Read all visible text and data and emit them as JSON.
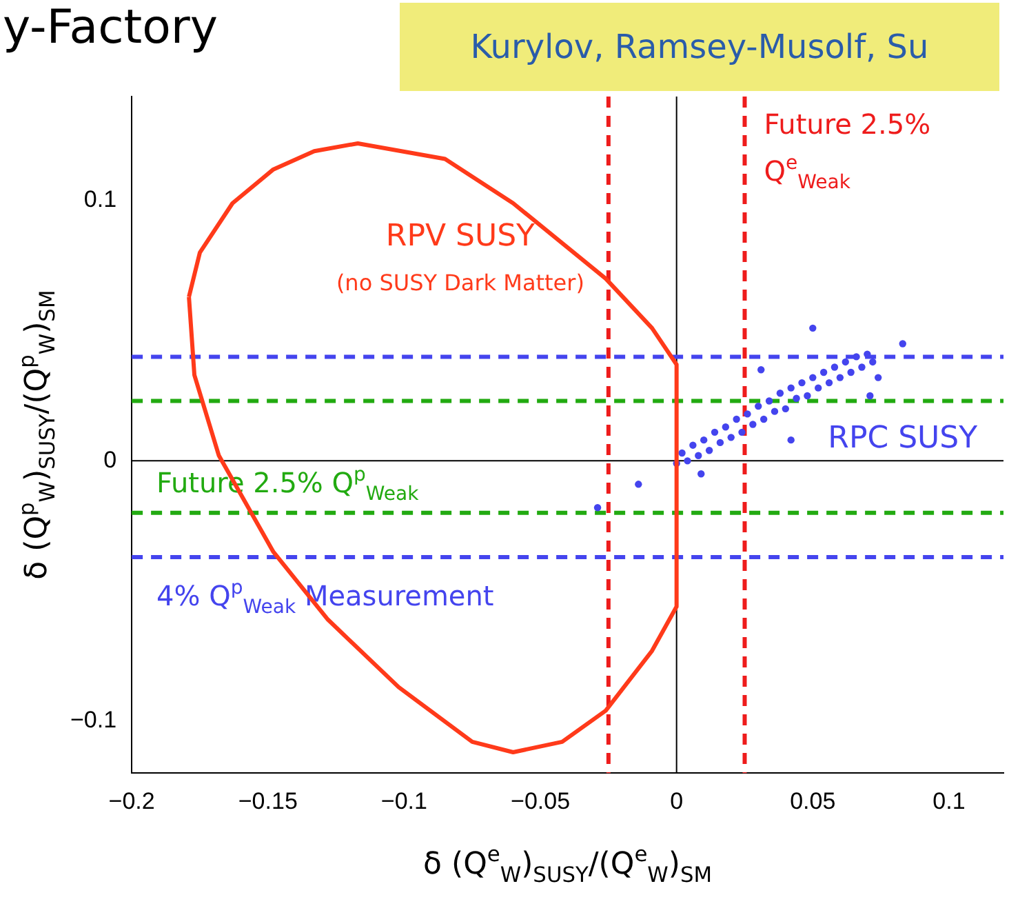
{
  "chart_data": {
    "type": "scatter",
    "xlabel": "δ (Q$^{e}$$_{W}$)$_{SUSY}$/(Q$^{e}$$_{W}$)$_{SM}$",
    "ylabel": "δ (Q$^{p}$$_{W}$)$_{SUSY}$/(Q$^{p}$$_{W}$)$_{SM}$",
    "annotations": [
      "y-Factory",
      "Kurylov, Ramsey-Musolf, Su"
    ],
    "xlim": [
      -0.2,
      0.12
    ],
    "ylim": [
      -0.12,
      0.14
    ],
    "xticks": [
      {
        "value": -0.2,
        "label": "−0.2"
      },
      {
        "value": -0.15,
        "label": "−0.15"
      },
      {
        "value": -0.1,
        "label": "−0.1"
      },
      {
        "value": -0.05,
        "label": "−0.05"
      },
      0,
      0.05,
      0.1
    ],
    "yticks": [
      {
        "value": -0.1,
        "label": "−0.1"
      },
      0,
      0.1
    ],
    "grid": false,
    "legend": false,
    "series": [
      {
        "name": "RPV SUSY\n(no SUSY Dark Matter)",
        "type": "line",
        "marker": "none",
        "line_style": "solid",
        "color": "#ff3a1a",
        "x": [
          -0.179,
          -0.175,
          -0.163,
          -0.148,
          -0.133,
          -0.117,
          -0.085,
          -0.06,
          -0.026,
          -0.009,
          0,
          0,
          null,
          -0.179,
          -0.177,
          -0.168,
          -0.148,
          -0.128,
          -0.102,
          -0.075,
          -0.06,
          -0.042,
          -0.026,
          -0.009,
          0
        ],
        "values": [
          0.063,
          0.08,
          0.099,
          0.112,
          0.119,
          0.122,
          0.116,
          0.099,
          0.07,
          0.051,
          0.037,
          -0.056,
          null,
          0.063,
          0.033,
          0.002,
          -0.035,
          -0.061,
          -0.087,
          -0.108,
          -0.112,
          -0.108,
          -0.096,
          -0.073,
          -0.056
        ]
      },
      {
        "name": "RPC SUSY",
        "type": "scatter",
        "marker": "circle",
        "color": "#4444ee",
        "x": [
          0,
          0.002,
          0.004,
          0.006,
          0.008,
          0.01,
          0.012,
          0.014,
          0.016,
          0.018,
          0.02,
          0.022,
          0.024,
          0.026,
          0.028,
          0.03,
          0.032,
          0.034,
          0.036,
          0.038,
          0.04,
          0.042,
          0.044,
          0.046,
          0.048,
          0.05,
          0.052,
          0.054,
          0.056,
          0.058,
          0.06,
          0.062,
          0.064,
          0.066,
          0.068,
          0.07,
          0.072,
          0.074,
          0.05,
          0.083,
          0.009,
          0.031,
          0.071,
          0.042,
          -0.014,
          -0.029
        ],
        "values": [
          -0.001,
          0.003,
          0,
          0.006,
          0.002,
          0.008,
          0.004,
          0.011,
          0.007,
          0.013,
          0.009,
          0.016,
          0.011,
          0.018,
          0.014,
          0.021,
          0.016,
          0.023,
          0.019,
          0.026,
          0.02,
          0.028,
          0.024,
          0.03,
          0.025,
          0.032,
          0.028,
          0.034,
          0.03,
          0.036,
          0.032,
          0.038,
          0.034,
          0.04,
          0.036,
          0.041,
          0.038,
          0.032,
          0.051,
          0.045,
          -0.005,
          0.035,
          0.025,
          0.008,
          -0.009,
          -0.018
        ]
      }
    ],
    "ref_lines": [
      {
        "axis": "x",
        "value": 0,
        "color": "#000000",
        "line_style": "solid"
      },
      {
        "axis": "y",
        "value": 0,
        "color": "#000000",
        "line_style": "solid"
      },
      {
        "axis": "x",
        "value": -0.025,
        "color": "#ee1c1c",
        "line_style": "dashed"
      },
      {
        "axis": "x",
        "value": 0.025,
        "color": "#ee1c1c",
        "line_style": "dashed",
        "label": "Future 2.5% Q$^{e}$$_{Weak}$"
      },
      {
        "axis": "y",
        "value": 0.04,
        "color": "#4444ee",
        "line_style": "dashed"
      },
      {
        "axis": "y",
        "value": -0.037,
        "color": "#4444ee",
        "line_style": "dashed",
        "label": "4% Q$^{p}$$_{Weak}$ Measurement"
      },
      {
        "axis": "y",
        "value": 0.023,
        "color": "#22aa11",
        "line_style": "dashed"
      },
      {
        "axis": "y",
        "value": -0.02,
        "color": "#22aa11",
        "line_style": "dashed",
        "label": "Future 2.5% Q$^{p}$$_{Weak}$"
      }
    ]
  }
}
